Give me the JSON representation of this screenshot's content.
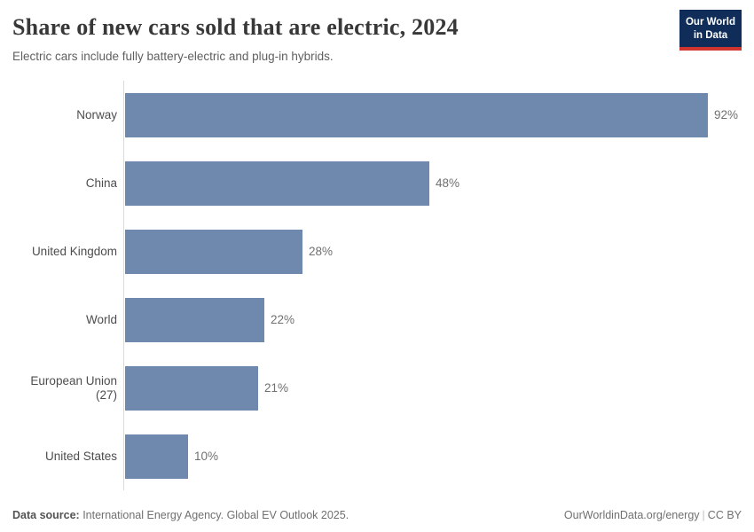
{
  "header": {
    "title": "Share of new cars sold that are electric, 2024",
    "subtitle": "Electric cars include fully battery-electric and plug-in hybrids.",
    "logo": {
      "line1": "Our World",
      "line2": "in Data"
    }
  },
  "chart_data": {
    "type": "bar",
    "orientation": "horizontal",
    "title": "Share of new cars sold that are electric, 2024",
    "categories": [
      "Norway",
      "China",
      "United Kingdom",
      "World",
      "European Union (27)",
      "United States"
    ],
    "values": [
      92,
      48,
      28,
      22,
      21,
      10
    ],
    "value_labels": [
      "92%",
      "48%",
      "28%",
      "22%",
      "21%",
      "10%"
    ],
    "unit": "%",
    "xlim": [
      0,
      92
    ],
    "grid": false,
    "legend": false
  },
  "footer": {
    "source_label": "Data source:",
    "source_text": " International Energy Agency. Global EV Outlook 2025.",
    "link": "OurWorldinData.org/energy",
    "separator": "|",
    "license": "CC BY"
  },
  "colors": {
    "bar": "#6f88ae",
    "axis_line": "#dadada",
    "logo_bg": "#102d5a",
    "logo_stripe": "#cf342e"
  }
}
